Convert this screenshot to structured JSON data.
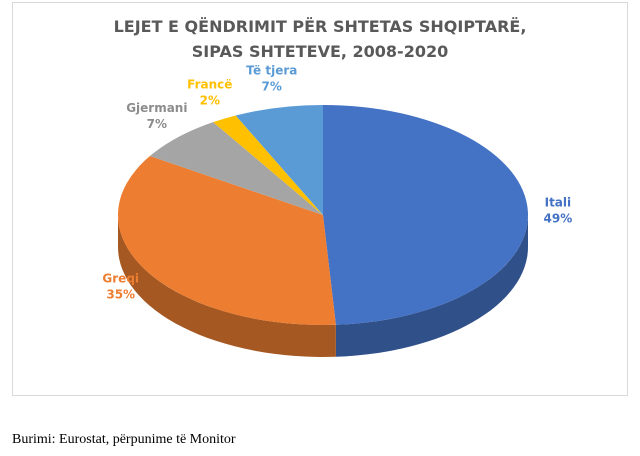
{
  "chart_data": {
    "type": "pie3d",
    "title": "LEJET E QËNDRIMIT PËR SHTETAS SHQIPTARË, SIPAS SHTETEVE, 2008-2020",
    "categories": [
      "Itali",
      "Greqi",
      "Gjermani",
      "Francë",
      "Të tjera"
    ],
    "values": [
      49,
      35,
      7,
      2,
      7
    ],
    "value_labels": [
      "49%",
      "35%",
      "7%",
      "2%",
      "7%"
    ],
    "colors": [
      "#4472c4",
      "#ed7d31",
      "#a5a5a5",
      "#ffc000",
      "#5b9bd5"
    ]
  },
  "source": "Burimi: Eurostat, përpunime të Monitor"
}
